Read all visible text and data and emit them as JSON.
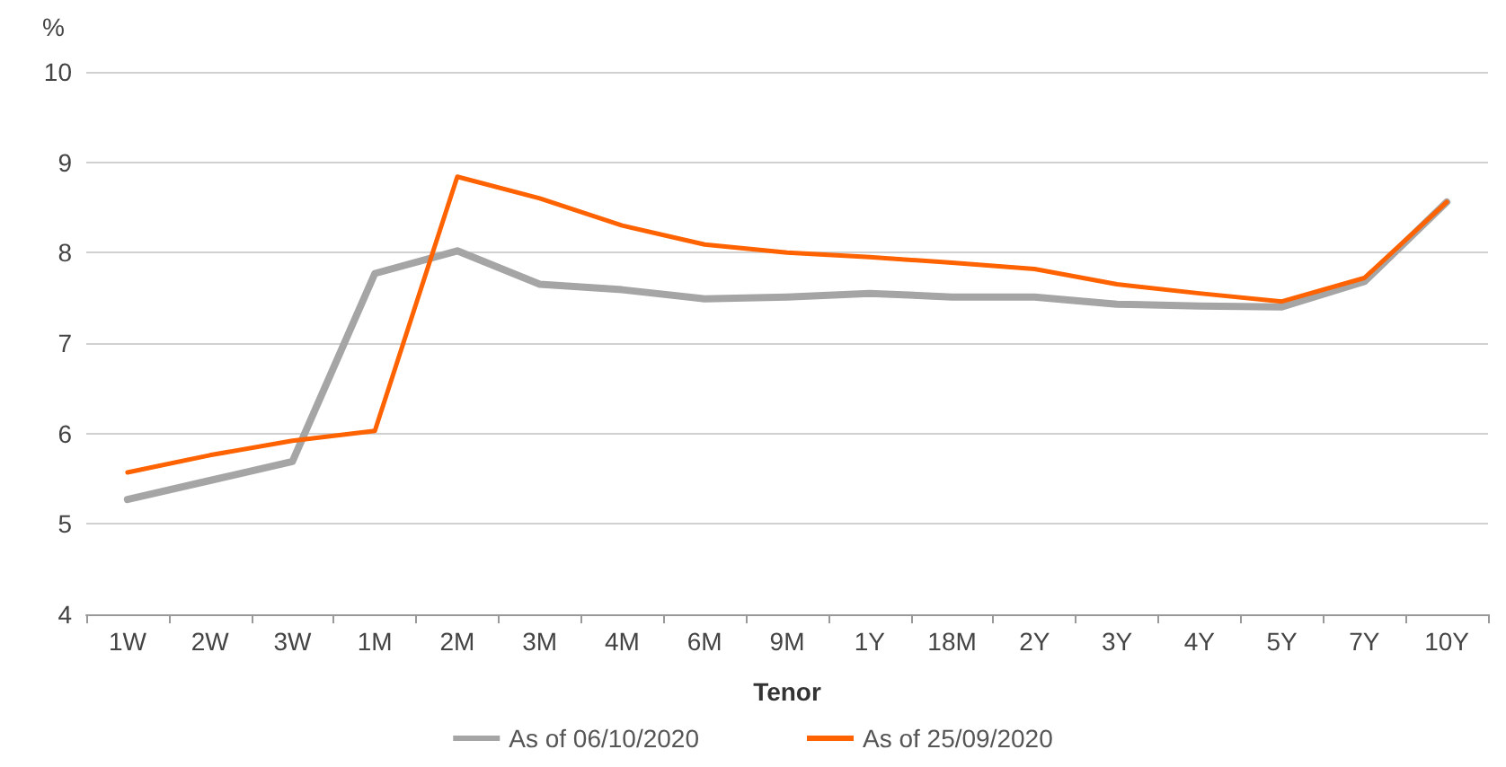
{
  "chart_data": {
    "type": "line",
    "ylabel": "%",
    "xlabel": "Tenor",
    "categories": [
      "1W",
      "2W",
      "3W",
      "1M",
      "2M",
      "3M",
      "4M",
      "6M",
      "9M",
      "1Y",
      "18M",
      "2Y",
      "3Y",
      "4Y",
      "5Y",
      "7Y",
      "10Y"
    ],
    "series": [
      {
        "name": "As of 06/10/2020",
        "color": "#a5a5a5",
        "values": [
          5.27,
          5.48,
          5.69,
          7.77,
          8.02,
          7.65,
          7.59,
          7.49,
          7.51,
          7.55,
          7.51,
          7.51,
          7.43,
          7.41,
          7.4,
          7.68,
          8.56
        ]
      },
      {
        "name": "As of 25/09/2020",
        "color": "#ff6200",
        "values": [
          5.57,
          5.76,
          5.92,
          6.03,
          8.84,
          8.6,
          8.3,
          8.09,
          8.0,
          7.95,
          7.89,
          7.82,
          7.65,
          7.55,
          7.46,
          7.72,
          8.56
        ]
      }
    ],
    "ylim": [
      4,
      10
    ],
    "yticks": [
      4,
      5,
      6,
      7,
      8,
      9,
      10
    ],
    "grid": "y",
    "legend": "bottom",
    "marker": "none",
    "line_style": "solid"
  }
}
